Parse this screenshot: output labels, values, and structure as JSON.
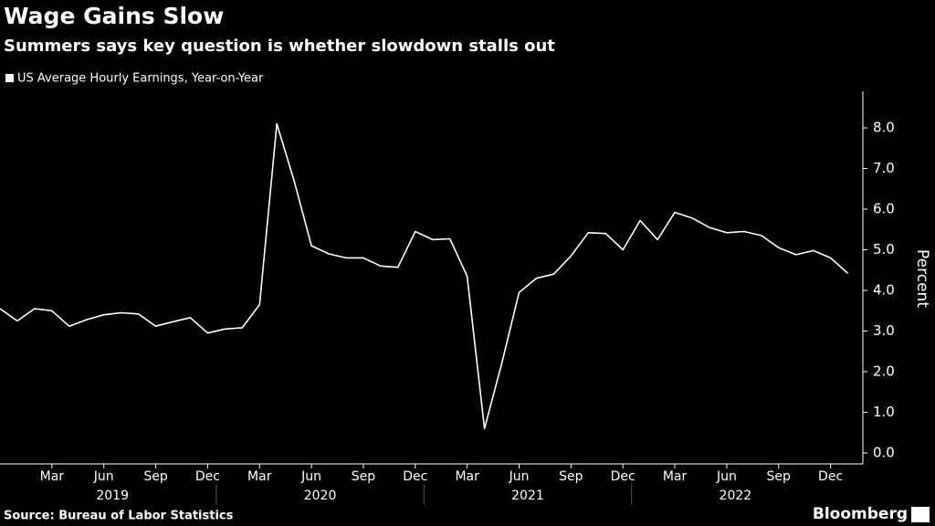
{
  "chart_data": {
    "type": "line",
    "title": "Wage Gains Slow",
    "subtitle": "Summers says key question is whether slowdown stalls out",
    "y_axis_label": "Percent",
    "source": "Source: Bureau of Labor Statistics",
    "branding": "Bloomberg",
    "categories": [
      null,
      null,
      null,
      "Mar",
      null,
      null,
      "Jun",
      null,
      null,
      "Sep",
      null,
      null,
      "Dec",
      null,
      null,
      "Mar",
      null,
      null,
      "Jun",
      null,
      null,
      "Sep",
      null,
      null,
      "Dec",
      null,
      null,
      "Mar",
      null,
      null,
      "Jun",
      null,
      null,
      "Sep",
      null,
      null,
      "Dec",
      null,
      null,
      "Mar",
      null,
      null,
      "Jun",
      null,
      null,
      "Sep",
      null,
      null,
      "Dec",
      null
    ],
    "year_labels": [
      "2019",
      "2020",
      "2021",
      "2022"
    ],
    "series": [
      {
        "name": "US Average Hourly Earnings, Year-on-Year",
        "color": "#ffffff",
        "values": [
          3.55,
          3.25,
          3.55,
          3.5,
          3.12,
          3.28,
          3.4,
          3.45,
          3.42,
          3.12,
          3.23,
          3.33,
          2.95,
          3.05,
          3.08,
          3.65,
          8.1,
          6.7,
          5.1,
          4.9,
          4.8,
          4.8,
          4.6,
          4.57,
          5.45,
          5.25,
          5.27,
          4.35,
          0.6,
          2.2,
          3.95,
          4.3,
          4.4,
          4.85,
          5.42,
          5.4,
          5.0,
          5.72,
          5.25,
          5.92,
          5.78,
          5.55,
          5.42,
          5.45,
          5.35,
          5.05,
          4.88,
          4.98,
          4.8,
          4.42
        ]
      }
    ],
    "ylim": [
      -0.27,
      8.9
    ],
    "yticks": [
      {
        "value": 0,
        "label": "0.0"
      },
      {
        "value": 1,
        "label": "1.0"
      },
      {
        "value": 2,
        "label": "2.0"
      },
      {
        "value": 3,
        "label": "3.0"
      },
      {
        "value": 4,
        "label": "4.0"
      },
      {
        "value": 5,
        "label": "5.0"
      },
      {
        "value": 6,
        "label": "6.0"
      },
      {
        "value": 7,
        "label": "7.0"
      },
      {
        "value": 8,
        "label": "8.0"
      }
    ],
    "grid": false
  }
}
